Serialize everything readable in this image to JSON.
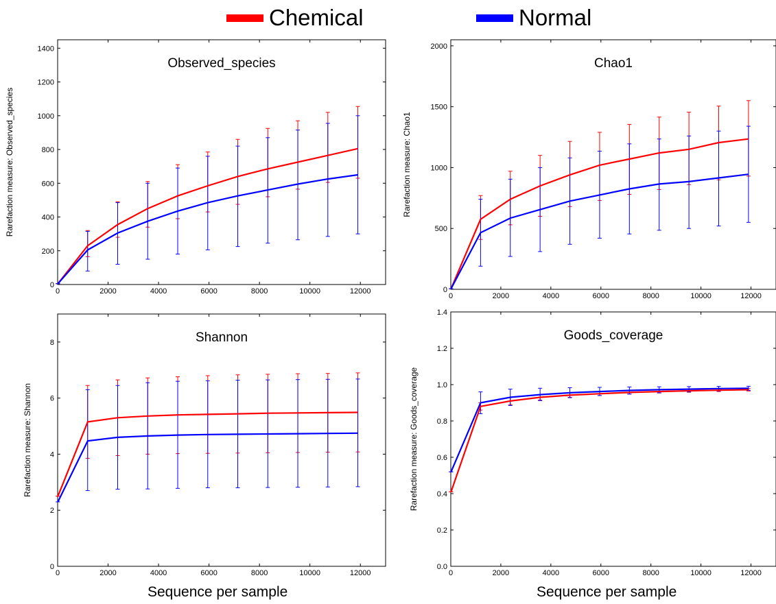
{
  "legend": {
    "chemical": "Chemical",
    "normal": "Normal",
    "chemical_color": "#ff0000",
    "normal_color": "#0000ff"
  },
  "xlabel_bottom": "Sequence per sample",
  "chart_data": [
    {
      "type": "line",
      "title": "Observed_species",
      "ylabel": "Rarefaction measure: Observed_species",
      "xlabel": "",
      "xlim": [
        0,
        13000
      ],
      "ylim": [
        0,
        1450
      ],
      "xticks": [
        0,
        2000,
        4000,
        6000,
        8000,
        10000,
        12000
      ],
      "yticks": [
        0,
        200,
        400,
        600,
        800,
        1000,
        1200,
        1400
      ],
      "x": [
        10,
        1190,
        2380,
        3570,
        4760,
        5950,
        7140,
        8330,
        9520,
        10710,
        11900
      ],
      "series": [
        {
          "name": "Chemical",
          "color": "#ff0000",
          "values": [
            5,
            230,
            355,
            450,
            525,
            585,
            640,
            685,
            725,
            765,
            805
          ],
          "err_low": [
            5,
            165,
            280,
            340,
            390,
            430,
            475,
            520,
            565,
            605,
            630
          ],
          "err_high": [
            5,
            320,
            490,
            610,
            710,
            785,
            860,
            925,
            970,
            1020,
            1055
          ]
        },
        {
          "name": "Normal",
          "color": "#0000ff",
          "values": [
            5,
            205,
            305,
            375,
            435,
            485,
            525,
            560,
            595,
            625,
            650
          ],
          "err_low": [
            5,
            80,
            120,
            150,
            180,
            205,
            225,
            245,
            265,
            285,
            300
          ],
          "err_high": [
            5,
            315,
            485,
            600,
            690,
            760,
            820,
            870,
            915,
            955,
            1000
          ]
        }
      ]
    },
    {
      "type": "line",
      "title": "Chao1",
      "ylabel": "Rarefaction measure: Chao1",
      "xlabel": "",
      "xlim": [
        0,
        13000
      ],
      "ylim": [
        0,
        2050
      ],
      "xticks": [
        0,
        2000,
        4000,
        6000,
        8000,
        10000,
        12000
      ],
      "yticks": [
        0,
        500,
        1000,
        1500,
        2000
      ],
      "x": [
        10,
        1190,
        2380,
        3570,
        4760,
        5950,
        7140,
        8330,
        9520,
        10710,
        11900
      ],
      "series": [
        {
          "name": "Chemical",
          "color": "#ff0000",
          "values": [
            5,
            575,
            740,
            850,
            940,
            1020,
            1070,
            1120,
            1150,
            1205,
            1235
          ],
          "err_low": [
            5,
            410,
            530,
            600,
            680,
            730,
            780,
            820,
            860,
            900,
            930
          ],
          "err_high": [
            5,
            770,
            970,
            1100,
            1215,
            1290,
            1355,
            1415,
            1455,
            1505,
            1550
          ]
        },
        {
          "name": "Normal",
          "color": "#0000ff",
          "values": [
            5,
            465,
            585,
            655,
            725,
            775,
            825,
            865,
            885,
            915,
            945
          ],
          "err_low": [
            5,
            190,
            270,
            310,
            370,
            420,
            455,
            485,
            500,
            520,
            550
          ],
          "err_high": [
            5,
            740,
            905,
            1000,
            1080,
            1135,
            1195,
            1235,
            1260,
            1300,
            1340
          ]
        }
      ]
    },
    {
      "type": "line",
      "title": "Shannon",
      "ylabel": "Rarefaction measure: Shannon",
      "xlabel": "",
      "xlim": [
        0,
        13000
      ],
      "ylim": [
        0,
        9
      ],
      "xticks": [
        0,
        2000,
        4000,
        6000,
        8000,
        10000,
        12000
      ],
      "yticks": [
        0,
        2,
        4,
        6,
        8
      ],
      "x": [
        10,
        1190,
        2380,
        3570,
        4760,
        5950,
        7140,
        8330,
        9520,
        10710,
        11900
      ],
      "series": [
        {
          "name": "Chemical",
          "color": "#ff0000",
          "values": [
            2.5,
            5.15,
            5.3,
            5.36,
            5.4,
            5.42,
            5.44,
            5.46,
            5.47,
            5.48,
            5.49
          ],
          "err_low": [
            2.5,
            3.85,
            3.95,
            4.0,
            4.02,
            4.03,
            4.04,
            4.05,
            4.06,
            4.07,
            4.08
          ],
          "err_high": [
            2.5,
            6.45,
            6.65,
            6.72,
            6.76,
            6.8,
            6.83,
            6.85,
            6.87,
            6.88,
            6.9
          ]
        },
        {
          "name": "Normal",
          "color": "#0000ff",
          "values": [
            2.3,
            4.47,
            4.6,
            4.65,
            4.68,
            4.7,
            4.71,
            4.72,
            4.73,
            4.74,
            4.75
          ],
          "err_low": [
            2.3,
            2.7,
            2.75,
            2.76,
            2.78,
            2.8,
            2.8,
            2.81,
            2.82,
            2.83,
            2.84
          ],
          "err_high": [
            2.3,
            6.3,
            6.45,
            6.55,
            6.6,
            6.62,
            6.64,
            6.65,
            6.66,
            6.67,
            6.68
          ]
        }
      ]
    },
    {
      "type": "line",
      "title": "Goods_coverage",
      "ylabel": "Rarefaction measure: Goods_coverage",
      "xlabel": "",
      "xlim": [
        0,
        13000
      ],
      "ylim": [
        0,
        1.4
      ],
      "xticks": [
        0,
        2000,
        4000,
        6000,
        8000,
        10000,
        12000
      ],
      "yticks": [
        0.0,
        0.2,
        0.4,
        0.6,
        0.8,
        1.0,
        1.2,
        1.4
      ],
      "x": [
        10,
        1190,
        2380,
        3570,
        4760,
        5950,
        7140,
        8330,
        9520,
        10710,
        11900
      ],
      "series": [
        {
          "name": "Chemical",
          "color": "#ff0000",
          "values": [
            0.41,
            0.88,
            0.91,
            0.93,
            0.942,
            0.95,
            0.957,
            0.962,
            0.966,
            0.969,
            0.972
          ],
          "err_low": [
            0.41,
            0.86,
            0.89,
            0.915,
            0.93,
            0.94,
            0.948,
            0.954,
            0.958,
            0.962,
            0.965
          ],
          "err_high": [
            0.41,
            0.9,
            0.93,
            0.945,
            0.955,
            0.962,
            0.967,
            0.971,
            0.974,
            0.976,
            0.978
          ]
        },
        {
          "name": "Normal",
          "color": "#0000ff",
          "values": [
            0.52,
            0.9,
            0.93,
            0.945,
            0.955,
            0.962,
            0.968,
            0.972,
            0.975,
            0.978,
            0.98
          ],
          "err_low": [
            0.52,
            0.84,
            0.885,
            0.912,
            0.928,
            0.94,
            0.948,
            0.955,
            0.96,
            0.965,
            0.968
          ],
          "err_high": [
            0.52,
            0.96,
            0.975,
            0.98,
            0.983,
            0.985,
            0.987,
            0.988,
            0.989,
            0.99,
            0.991
          ]
        }
      ]
    }
  ]
}
